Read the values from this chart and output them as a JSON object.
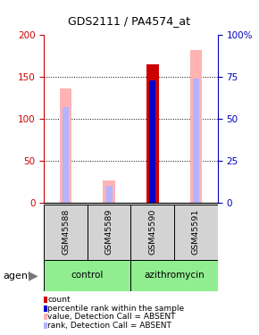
{
  "title": "GDS2111 / PA4574_at",
  "samples": [
    "GSM45588",
    "GSM45589",
    "GSM45590",
    "GSM45591"
  ],
  "left_ylim": [
    0,
    200
  ],
  "right_ylim": [
    0,
    100
  ],
  "left_yticks": [
    0,
    50,
    100,
    150,
    200
  ],
  "right_yticks": [
    0,
    25,
    50,
    75,
    100
  ],
  "right_yticklabels": [
    "0",
    "25",
    "50",
    "75",
    "100%"
  ],
  "count_values": [
    0,
    0,
    165,
    0
  ],
  "rank_values_pct": [
    0,
    0,
    73,
    0
  ],
  "absent_value_bars": [
    136,
    27,
    0,
    182
  ],
  "absent_rank_bars_pct": [
    57,
    10,
    0,
    74
  ],
  "color_count": "#cc0000",
  "color_rank": "#0000cc",
  "color_absent_value": "#ffb3b3",
  "color_absent_rank": "#b3b3ff",
  "left_label_color": "#cc0000",
  "right_label_color": "#0000bb",
  "grid_lines": [
    50,
    100,
    150
  ],
  "legend": [
    {
      "label": "count",
      "color": "#cc0000"
    },
    {
      "label": "percentile rank within the sample",
      "color": "#0000cc"
    },
    {
      "label": "value, Detection Call = ABSENT",
      "color": "#ffb3b3"
    },
    {
      "label": "rank, Detection Call = ABSENT",
      "color": "#b3b3ff"
    }
  ]
}
